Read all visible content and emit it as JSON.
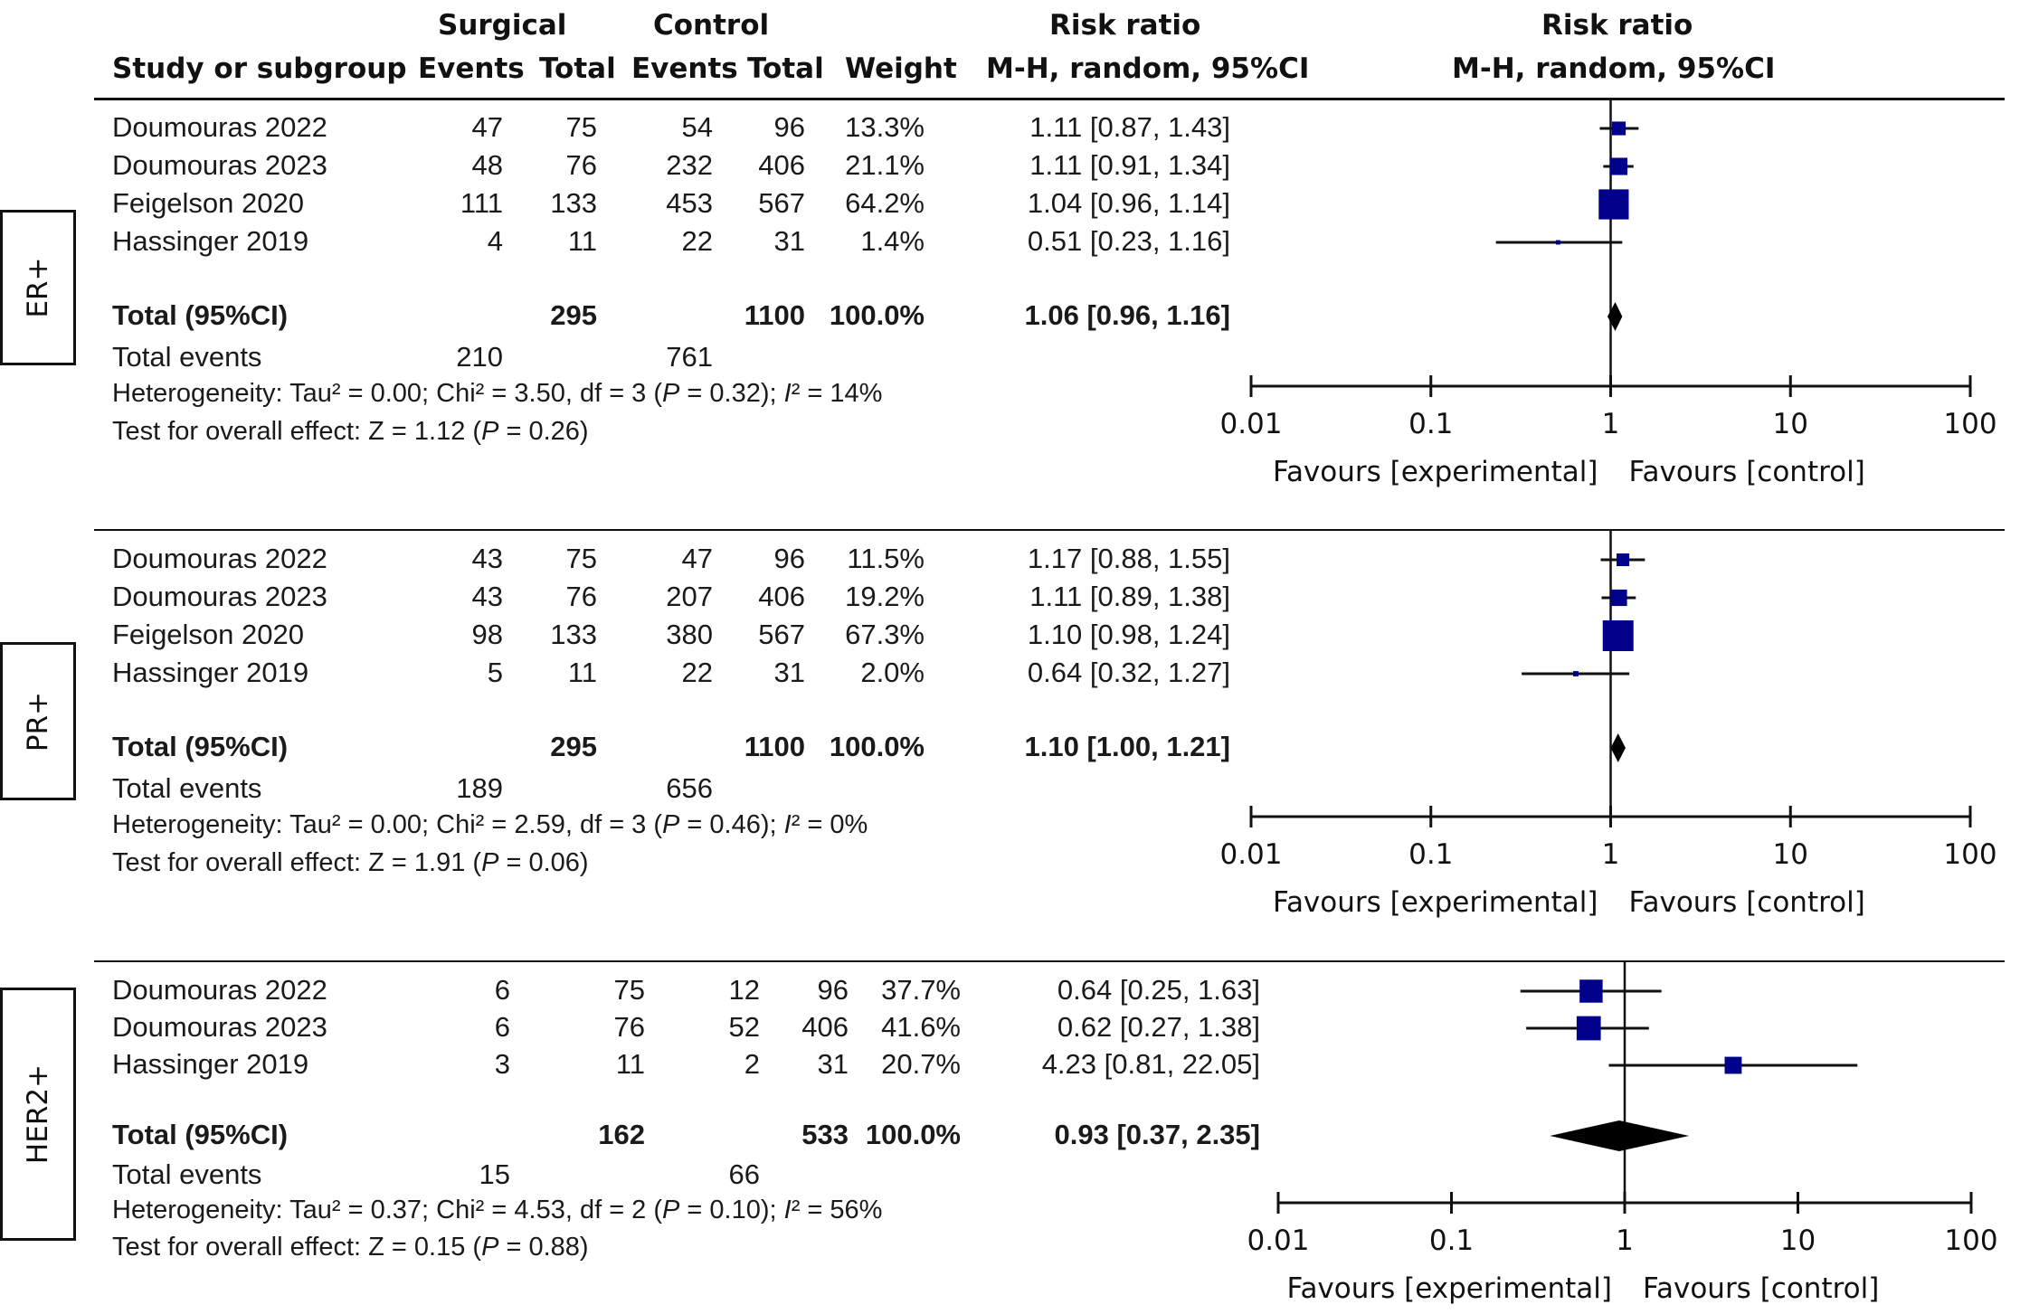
{
  "header": {
    "group_surgical": "Surgical",
    "group_control": "Control",
    "col_study": "Study or subgroup",
    "col_events_s": "Events",
    "col_total_s": "Total",
    "col_events_c": "Events",
    "col_total_c": "Total",
    "col_weight": "Weight",
    "col_rr_title": "Risk ratio",
    "col_rr_method": "M-H, random, 95%CI",
    "plot_rr_title": "Risk ratio",
    "plot_rr_method": "M-H, random, 95%CI"
  },
  "colors": {
    "study_marker": "#00008B",
    "diamond": "#000000",
    "line": "#111111"
  },
  "chart_data": {
    "type": "forest",
    "x_scale": "log",
    "xlim": [
      0.01,
      100
    ],
    "x_ticks": [
      "0.01",
      "0.1",
      "1",
      "10",
      "100"
    ],
    "x_tick_values": [
      0.01,
      0.1,
      1,
      10,
      100
    ],
    "xlabel_left": "Favours [experimental]",
    "xlabel_right": "Favours [control]",
    "reference_line": 1,
    "panels": [
      {
        "label": "ER+",
        "studies": [
          {
            "name": "Doumouras 2022",
            "events_s": "47",
            "total_s": "75",
            "events_c": "54",
            "total_c": "96",
            "weight": "13.3%",
            "weight_value": 13.3,
            "rr_text": "1.11 [0.87, 1.43]",
            "rr": 1.11,
            "lo": 0.87,
            "hi": 1.43
          },
          {
            "name": "Doumouras 2023",
            "events_s": "48",
            "total_s": "76",
            "events_c": "232",
            "total_c": "406",
            "weight": "21.1%",
            "weight_value": 21.1,
            "rr_text": "1.11 [0.91, 1.34]",
            "rr": 1.11,
            "lo": 0.91,
            "hi": 1.34
          },
          {
            "name": "Feigelson 2020",
            "events_s": "111",
            "total_s": "133",
            "events_c": "453",
            "total_c": "567",
            "weight": "64.2%",
            "weight_value": 64.2,
            "rr_text": "1.04 [0.96, 1.14]",
            "rr": 1.04,
            "lo": 0.96,
            "hi": 1.14
          },
          {
            "name": "Hassinger 2019",
            "events_s": "4",
            "total_s": "11",
            "events_c": "22",
            "total_c": "31",
            "weight": "1.4%",
            "weight_value": 1.4,
            "rr_text": "0.51 [0.23, 1.16]",
            "rr": 0.51,
            "lo": 0.23,
            "hi": 1.16
          }
        ],
        "total": {
          "label": "Total (95%CI)",
          "total_s": "295",
          "total_c": "1100",
          "weight": "100.0%",
          "rr_text": "1.06 [0.96, 1.16]",
          "rr": 1.06,
          "lo": 0.96,
          "hi": 1.16
        },
        "total_events": {
          "label": "Total events",
          "events_s": "210",
          "events_c": "761"
        },
        "heterogeneity": {
          "prefix": "Heterogeneity: Tau² = 0.00; Chi² = 3.50, df = 3 (",
          "p_label": "P",
          "p_value": " = 0.32); ",
          "i_label": "I",
          "i_value": "² = 14%"
        },
        "overall": {
          "prefix": "Test for overall effect: Z = 1.12 (",
          "p_label": "P",
          "p_value": " = 0.26)"
        }
      },
      {
        "label": "PR+",
        "studies": [
          {
            "name": "Doumouras 2022",
            "events_s": "43",
            "total_s": "75",
            "events_c": "47",
            "total_c": "96",
            "weight": "11.5%",
            "weight_value": 11.5,
            "rr_text": "1.17 [0.88, 1.55]",
            "rr": 1.17,
            "lo": 0.88,
            "hi": 1.55
          },
          {
            "name": "Doumouras 2023",
            "events_s": "43",
            "total_s": "76",
            "events_c": "207",
            "total_c": "406",
            "weight": "19.2%",
            "weight_value": 19.2,
            "rr_text": "1.11 [0.89, 1.38]",
            "rr": 1.11,
            "lo": 0.89,
            "hi": 1.38
          },
          {
            "name": "Feigelson 2020",
            "events_s": "98",
            "total_s": "133",
            "events_c": "380",
            "total_c": "567",
            "weight": "67.3%",
            "weight_value": 67.3,
            "rr_text": "1.10 [0.98, 1.24]",
            "rr": 1.1,
            "lo": 0.98,
            "hi": 1.24
          },
          {
            "name": "Hassinger 2019",
            "events_s": "5",
            "total_s": "11",
            "events_c": "22",
            "total_c": "31",
            "weight": "2.0%",
            "weight_value": 2.0,
            "rr_text": "0.64 [0.32, 1.27]",
            "rr": 0.64,
            "lo": 0.32,
            "hi": 1.27
          }
        ],
        "total": {
          "label": "Total (95%CI)",
          "total_s": "295",
          "total_c": "1100",
          "weight": "100.0%",
          "rr_text": "1.10 [1.00, 1.21]",
          "rr": 1.1,
          "lo": 1.0,
          "hi": 1.21
        },
        "total_events": {
          "label": "Total events",
          "events_s": "189",
          "events_c": "656"
        },
        "heterogeneity": {
          "prefix": "Heterogeneity: Tau² = 0.00; Chi² = 2.59, df = 3 (",
          "p_label": "P",
          "p_value": " = 0.46); ",
          "i_label": "I",
          "i_value": "² = 0%"
        },
        "overall": {
          "prefix": "Test for overall effect: Z = 1.91 (",
          "p_label": "P",
          "p_value": " = 0.06)"
        }
      },
      {
        "label": "HER2+",
        "studies": [
          {
            "name": "Doumouras 2022",
            "events_s": "6",
            "total_s": "75",
            "events_c": "12",
            "total_c": "96",
            "weight": "37.7%",
            "weight_value": 37.7,
            "rr_text": "0.64 [0.25, 1.63]",
            "rr": 0.64,
            "lo": 0.25,
            "hi": 1.63
          },
          {
            "name": "Doumouras 2023",
            "events_s": "6",
            "total_s": "76",
            "events_c": "52",
            "total_c": "406",
            "weight": "41.6%",
            "weight_value": 41.6,
            "rr_text": "0.62 [0.27, 1.38]",
            "rr": 0.62,
            "lo": 0.27,
            "hi": 1.38
          },
          {
            "name": "Hassinger 2019",
            "events_s": "3",
            "total_s": "11",
            "events_c": "2",
            "total_c": "31",
            "weight": "20.7%",
            "weight_value": 20.7,
            "rr_text": "4.23 [0.81, 22.05]",
            "rr": 4.23,
            "lo": 0.81,
            "hi": 22.05
          }
        ],
        "total": {
          "label": "Total (95%CI)",
          "total_s": "162",
          "total_c": "533",
          "weight": "100.0%",
          "rr_text": "0.93 [0.37, 2.35]",
          "rr": 0.93,
          "lo": 0.37,
          "hi": 2.35
        },
        "total_events": {
          "label": "Total events",
          "events_s": "15",
          "events_c": "66"
        },
        "heterogeneity": {
          "prefix": "Heterogeneity: Tau² = 0.37; Chi² = 4.53, df = 2 (",
          "p_label": "P",
          "p_value": " = 0.10); ",
          "i_label": "I",
          "i_value": "² = 56%"
        },
        "overall": {
          "prefix": "Test for overall effect: Z = 0.15 (",
          "p_label": "P",
          "p_value": " = 0.88)"
        }
      }
    ]
  }
}
